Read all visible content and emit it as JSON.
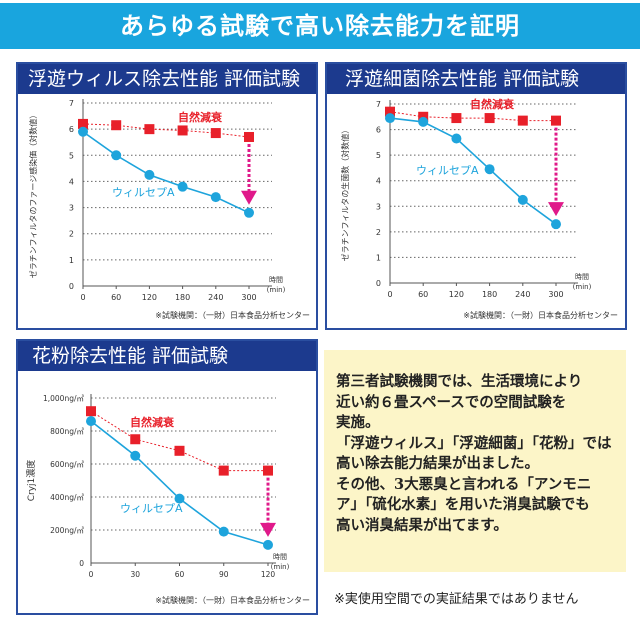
{
  "header": {
    "title": "あらゆる試験で高い除去能力を証明"
  },
  "colors": {
    "banner": "#19a5de",
    "panel_title": "#1c3a8e",
    "natural": "#e8202a",
    "product": "#1ea4dc",
    "arrow": "#e0198a",
    "textbox": "#fcf5c8"
  },
  "chart_data": [
    {
      "type": "line",
      "title": "浮遊ウィルス除去性能 評価試験",
      "ylabel": "ゼラチンフィルタのファージ感染価（対数値）",
      "xlabel": "時間",
      "xunit": "(min)",
      "x": [
        0,
        60,
        120,
        180,
        240,
        300
      ],
      "xticks": [
        "0",
        "60",
        "120",
        "180",
        "240",
        "300"
      ],
      "yticks": [
        "0",
        "1",
        "2",
        "3",
        "4",
        "5",
        "6",
        "7"
      ],
      "ylim": [
        0,
        7
      ],
      "grid": true,
      "series": [
        {
          "name": "自然減衰",
          "values": [
            6.2,
            6.15,
            6.0,
            5.95,
            5.85,
            5.7
          ]
        },
        {
          "name": "ウィルセプA",
          "values": [
            5.9,
            5.0,
            4.25,
            3.8,
            3.4,
            2.8
          ]
        }
      ],
      "source": "※試験機関：（一財）日本食品分析センター"
    },
    {
      "type": "line",
      "title": "浮遊細菌除去性能 評価試験",
      "ylabel": "ゼラチンフィルタの生菌数（対数値）",
      "xlabel": "時間",
      "xunit": "(min)",
      "x": [
        0,
        60,
        120,
        180,
        240,
        300
      ],
      "xticks": [
        "0",
        "60",
        "120",
        "180",
        "240",
        "300"
      ],
      "yticks": [
        "0",
        "1",
        "2",
        "3",
        "4",
        "5",
        "6",
        "7"
      ],
      "ylim": [
        0,
        7
      ],
      "grid": true,
      "series": [
        {
          "name": "自然減衰",
          "values": [
            6.7,
            6.5,
            6.45,
            6.45,
            6.35,
            6.35
          ]
        },
        {
          "name": "ウィルセプA",
          "values": [
            6.45,
            6.3,
            5.65,
            4.45,
            3.25,
            2.3
          ]
        }
      ],
      "source": "※試験機関：（一財）日本食品分析センター"
    },
    {
      "type": "line",
      "title": "花粉除去性能 評価試験",
      "ylabel": "Cryj1濃度",
      "xlabel": "時間",
      "xunit": "(min)",
      "x": [
        0,
        30,
        60,
        90,
        120
      ],
      "xticks": [
        "0",
        "30",
        "60",
        "90",
        "120"
      ],
      "yticks": [
        "0",
        "200ng/㎥",
        "400ng/㎥",
        "600ng/㎥",
        "800ng/㎥",
        "1,000ng/㎥"
      ],
      "ylim": [
        0,
        1000
      ],
      "grid": true,
      "series": [
        {
          "name": "自然減衰",
          "values": [
            920,
            750,
            680,
            560,
            560
          ]
        },
        {
          "name": "ウィルセプA",
          "values": [
            860,
            650,
            390,
            190,
            110
          ]
        }
      ],
      "source": "※試験機関：（一財）日本食品分析センター"
    }
  ],
  "description": {
    "lines": [
      "第三者試験機関では、生活環境により",
      "近い約６畳スペースでの空間試験を",
      "実施。",
      "「浮遊ウィルス」「浮遊細菌」「花粉」では",
      "高い除去能力結果が出ました。",
      "その他、3大悪臭と言われる「アンモニ",
      "ア」「硫化水素」を用いた消臭試験でも",
      "高い消臭結果が出てます。"
    ]
  },
  "footnote": "※実使用空間での実証結果ではありません"
}
